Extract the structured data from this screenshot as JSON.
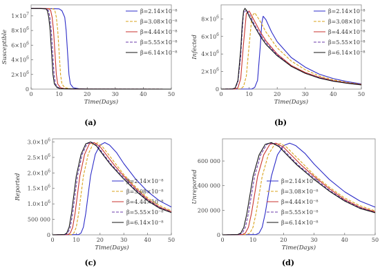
{
  "series_style": [
    {
      "color": "#2b2bc8",
      "dash": ""
    },
    {
      "color": "#d9a21b",
      "dash": "4,2"
    },
    {
      "color": "#c8322d",
      "dash": ""
    },
    {
      "color": "#6a3aa8",
      "dash": "4,2"
    },
    {
      "color": "#111111",
      "dash": ""
    }
  ],
  "chart_data": [
    {
      "type": "line",
      "panel_label": "(a)",
      "xlabel": "Time(Days)",
      "ylabel": "Susceptible",
      "xlim": [
        0,
        50
      ],
      "ylim": [
        0,
        11500000
      ],
      "xticks": [
        0,
        10,
        20,
        30,
        40,
        50
      ],
      "yticks": [
        {
          "v": 0,
          "base": "0",
          "exp": ""
        },
        {
          "v": 2000000,
          "base": "2×10",
          "exp": "6"
        },
        {
          "v": 4000000,
          "base": "4×10",
          "exp": "6"
        },
        {
          "v": 6000000,
          "base": "6×10",
          "exp": "6"
        },
        {
          "v": 8000000,
          "base": "8×10",
          "exp": "6"
        },
        {
          "v": 10000000,
          "base": "1×10",
          "exp": "7"
        }
      ],
      "legend": "top-right",
      "series": [
        {
          "name": "β=2.14×10⁻⁸",
          "x": [
            0,
            5,
            10,
            11,
            12,
            12.5,
            13,
            13.5,
            14,
            15,
            17,
            20,
            50
          ],
          "y": [
            11000000,
            11000000,
            10950000,
            10700000,
            9800000,
            8000000,
            5000000,
            2000000,
            700000,
            200000,
            50000,
            10000,
            0
          ]
        },
        {
          "name": "β=3.08×10⁻⁸",
          "x": [
            0,
            5,
            8,
            8.5,
            9,
            9.5,
            10,
            10.5,
            11,
            12,
            14,
            20,
            50
          ],
          "y": [
            11000000,
            11000000,
            10950000,
            10700000,
            9800000,
            8000000,
            5000000,
            2000000,
            700000,
            200000,
            50000,
            10000,
            0
          ]
        },
        {
          "name": "β=4.44×10⁻⁸",
          "x": [
            0,
            4,
            6.5,
            7,
            7.5,
            8,
            8.5,
            9,
            9.5,
            10.5,
            12,
            20,
            50
          ],
          "y": [
            11000000,
            11000000,
            10950000,
            10700000,
            9800000,
            8000000,
            5000000,
            2000000,
            700000,
            200000,
            50000,
            10000,
            0
          ]
        },
        {
          "name": "β=5.55×10⁻⁸",
          "x": [
            0,
            3,
            5.7,
            6.2,
            6.7,
            7.2,
            7.7,
            8.2,
            8.7,
            9.7,
            11,
            20,
            50
          ],
          "y": [
            11000000,
            11000000,
            10950000,
            10700000,
            9800000,
            8000000,
            5000000,
            2000000,
            700000,
            200000,
            50000,
            10000,
            0
          ]
        },
        {
          "name": "β=6.14×10⁻⁸",
          "x": [
            0,
            3,
            5.3,
            5.8,
            6.3,
            6.8,
            7.3,
            7.8,
            8.3,
            9.3,
            10.5,
            20,
            50
          ],
          "y": [
            11000000,
            11000000,
            10950000,
            10700000,
            9800000,
            8000000,
            5000000,
            2000000,
            700000,
            200000,
            50000,
            10000,
            0
          ]
        }
      ]
    },
    {
      "type": "line",
      "panel_label": "(b)",
      "xlabel": "Time(Days)",
      "ylabel": "Infected",
      "xlim": [
        0,
        50
      ],
      "ylim": [
        0,
        9600000
      ],
      "xticks": [
        0,
        10,
        20,
        30,
        40,
        50
      ],
      "yticks": [
        {
          "v": 0,
          "base": "0",
          "exp": ""
        },
        {
          "v": 2000000,
          "base": "2×10",
          "exp": "6"
        },
        {
          "v": 4000000,
          "base": "4×10",
          "exp": "6"
        },
        {
          "v": 6000000,
          "base": "6×10",
          "exp": "6"
        },
        {
          "v": 8000000,
          "base": "8×10",
          "exp": "6"
        }
      ],
      "legend": "top-right",
      "series": [
        {
          "name": "β=2.14×10⁻⁸",
          "x": [
            0,
            11,
            12,
            13,
            14,
            14.5,
            15,
            16,
            18,
            20,
            25,
            30,
            35,
            40,
            45,
            50
          ],
          "y": [
            0,
            20000,
            200000,
            1000000,
            5000000,
            7500000,
            8300000,
            7900000,
            6500000,
            5400000,
            3600000,
            2500000,
            1700000,
            1200000,
            850000,
            600000
          ]
        },
        {
          "name": "β=3.08×10⁻⁸",
          "x": [
            0,
            7,
            8,
            9,
            10,
            11,
            12,
            14,
            16,
            20,
            25,
            30,
            35,
            40,
            45,
            50
          ],
          "y": [
            0,
            30000,
            300000,
            1500000,
            5000000,
            8300000,
            8700000,
            7700000,
            6500000,
            4700000,
            3200000,
            2200000,
            1500000,
            1050000,
            750000,
            550000
          ]
        },
        {
          "name": "β=4.44×10⁻⁸",
          "x": [
            0,
            5,
            6,
            7,
            8,
            9,
            10,
            12,
            14,
            16,
            20,
            25,
            30,
            35,
            40,
            45,
            50
          ],
          "y": [
            0,
            20000,
            150000,
            1200000,
            5200000,
            8600000,
            8900000,
            7700000,
            6500000,
            5500000,
            4000000,
            2700000,
            1900000,
            1350000,
            950000,
            700000,
            520000
          ]
        },
        {
          "name": "β=5.55×10⁻⁸",
          "x": [
            0,
            4,
            5,
            6,
            7,
            7.5,
            8,
            9,
            10,
            12,
            14,
            16,
            20,
            25,
            30,
            35,
            40,
            45,
            50
          ],
          "y": [
            0,
            20000,
            100000,
            800000,
            3800000,
            6500000,
            8700000,
            9000000,
            8600000,
            7300000,
            6200000,
            5300000,
            3900000,
            2600000,
            1800000,
            1300000,
            920000,
            680000,
            500000
          ]
        },
        {
          "name": "β=6.14×10⁻⁸",
          "x": [
            0,
            4,
            5,
            6,
            7,
            7.5,
            8,
            8.5,
            9,
            10,
            12,
            14,
            16,
            20,
            25,
            30,
            35,
            40,
            45,
            50
          ],
          "y": [
            0,
            20000,
            120000,
            1000000,
            4500000,
            7200000,
            8900000,
            9200000,
            9000000,
            8300000,
            7100000,
            6000000,
            5100000,
            3800000,
            2600000,
            1800000,
            1250000,
            900000,
            660000,
            480000
          ]
        }
      ]
    },
    {
      "type": "line",
      "panel_label": "(c)",
      "xlabel": "Time(Days)",
      "ylabel": "Reported",
      "xlim": [
        0,
        50
      ],
      "ylim": [
        0,
        3100000
      ],
      "xticks": [
        0,
        10,
        20,
        30,
        40,
        50
      ],
      "yticks": [
        {
          "v": 0,
          "base": "0",
          "exp": ""
        },
        {
          "v": 500000,
          "base": "500 000",
          "exp": ""
        },
        {
          "v": 1000000,
          "base": "1.0×10",
          "exp": "6"
        },
        {
          "v": 1500000,
          "base": "1.5×10",
          "exp": "6"
        },
        {
          "v": 2000000,
          "base": "2.0×10",
          "exp": "6"
        },
        {
          "v": 2500000,
          "base": "2.5×10",
          "exp": "6"
        },
        {
          "v": 3000000,
          "base": "3.0×10",
          "exp": "6"
        }
      ],
      "legend": "right",
      "series": [
        {
          "name": "β=2.14×10⁻⁸",
          "x": [
            0,
            11,
            12,
            13,
            14,
            15,
            16,
            18,
            20,
            22,
            24,
            27,
            30,
            35,
            40,
            45,
            50
          ],
          "y": [
            0,
            10000,
            60000,
            250000,
            700000,
            1300000,
            1900000,
            2600000,
            2900000,
            2980000,
            2900000,
            2650000,
            2300000,
            1800000,
            1400000,
            1100000,
            900000
          ]
        },
        {
          "name": "β=3.08×10⁻⁸",
          "x": [
            0,
            8,
            9,
            10,
            11,
            12,
            13,
            15,
            17,
            19,
            21,
            24,
            27,
            30,
            35,
            40,
            45,
            50
          ],
          "y": [
            0,
            10000,
            60000,
            250000,
            700000,
            1300000,
            1900000,
            2600000,
            2930000,
            2970000,
            2850000,
            2550000,
            2250000,
            1950000,
            1550000,
            1200000,
            950000,
            780000
          ]
        },
        {
          "name": "β=4.44×10⁻⁸",
          "x": [
            0,
            6.5,
            7.5,
            8.5,
            9.5,
            10.5,
            11.5,
            13.5,
            15.5,
            17.5,
            20,
            23,
            26,
            30,
            35,
            40,
            45,
            50
          ],
          "y": [
            0,
            10000,
            60000,
            250000,
            700000,
            1300000,
            1900000,
            2600000,
            2940000,
            2980000,
            2850000,
            2550000,
            2250000,
            1900000,
            1500000,
            1150000,
            900000,
            750000
          ]
        },
        {
          "name": "β=5.55×10⁻⁸",
          "x": [
            0,
            5.5,
            6.5,
            7.5,
            8.5,
            9.5,
            10.5,
            12.5,
            14.5,
            16.5,
            19,
            22,
            25,
            30,
            35,
            40,
            45,
            50
          ],
          "y": [
            0,
            10000,
            60000,
            250000,
            700000,
            1300000,
            1900000,
            2600000,
            2940000,
            2990000,
            2860000,
            2550000,
            2250000,
            1850000,
            1450000,
            1120000,
            880000,
            730000
          ]
        },
        {
          "name": "β=6.14×10⁻⁸",
          "x": [
            0,
            5,
            6,
            7,
            8,
            9,
            10,
            12,
            14,
            16,
            18.5,
            21.5,
            24.5,
            30,
            35,
            40,
            45,
            50
          ],
          "y": [
            0,
            10000,
            60000,
            250000,
            700000,
            1300000,
            1900000,
            2600000,
            2940000,
            3000000,
            2870000,
            2560000,
            2260000,
            1800000,
            1420000,
            1100000,
            860000,
            720000
          ]
        }
      ]
    },
    {
      "type": "line",
      "panel_label": "(d)",
      "xlabel": "Time(Days)",
      "ylabel": "Unreported",
      "xlim": [
        0,
        50
      ],
      "ylim": [
        0,
        780000
      ],
      "xticks": [
        0,
        10,
        20,
        30,
        40,
        50
      ],
      "yticks": [
        {
          "v": 0,
          "base": "0",
          "exp": ""
        },
        {
          "v": 200000,
          "base": "200 000",
          "exp": ""
        },
        {
          "v": 400000,
          "base": "400 000",
          "exp": ""
        },
        {
          "v": 600000,
          "base": "600 000",
          "exp": ""
        }
      ],
      "legend": "right",
      "series": [
        {
          "name": "β=2.14×10⁻⁸",
          "x": [
            0,
            11,
            12,
            13,
            14,
            15,
            16,
            18,
            20,
            22,
            24,
            27,
            30,
            35,
            40,
            45,
            50
          ],
          "y": [
            0,
            2500,
            15000,
            62000,
            175000,
            325000,
            475000,
            650000,
            725000,
            745000,
            725000,
            662000,
            575000,
            450000,
            350000,
            275000,
            225000
          ]
        },
        {
          "name": "β=3.08×10⁻⁸",
          "x": [
            0,
            8,
            9,
            10,
            11,
            12,
            13,
            15,
            17,
            19,
            21,
            24,
            27,
            30,
            35,
            40,
            45,
            50
          ],
          "y": [
            0,
            2500,
            15000,
            62000,
            175000,
            325000,
            475000,
            650000,
            732000,
            742000,
            712000,
            637000,
            562000,
            487000,
            387000,
            300000,
            237000,
            195000
          ]
        },
        {
          "name": "β=4.44×10⁻⁸",
          "x": [
            0,
            6.5,
            7.5,
            8.5,
            9.5,
            10.5,
            11.5,
            13.5,
            15.5,
            17.5,
            20,
            23,
            26,
            30,
            35,
            40,
            45,
            50
          ],
          "y": [
            0,
            2500,
            15000,
            62000,
            175000,
            325000,
            475000,
            650000,
            735000,
            745000,
            712000,
            637000,
            562000,
            475000,
            375000,
            287000,
            225000,
            187000
          ]
        },
        {
          "name": "β=5.55×10⁻⁸",
          "x": [
            0,
            5.5,
            6.5,
            7.5,
            8.5,
            9.5,
            10.5,
            12.5,
            14.5,
            16.5,
            19,
            22,
            25,
            30,
            35,
            40,
            45,
            50
          ],
          "y": [
            0,
            2500,
            15000,
            62000,
            175000,
            325000,
            475000,
            650000,
            735000,
            747000,
            715000,
            637000,
            562000,
            462000,
            362000,
            280000,
            220000,
            182000
          ]
        },
        {
          "name": "β=6.14×10⁻⁸",
          "x": [
            0,
            5,
            6,
            7,
            8,
            9,
            10,
            12,
            14,
            16,
            18.5,
            21.5,
            24.5,
            30,
            35,
            40,
            45,
            50
          ],
          "y": [
            0,
            2500,
            15000,
            62000,
            175000,
            325000,
            475000,
            650000,
            735000,
            750000,
            717000,
            640000,
            565000,
            450000,
            355000,
            275000,
            215000,
            180000
          ]
        }
      ]
    }
  ]
}
